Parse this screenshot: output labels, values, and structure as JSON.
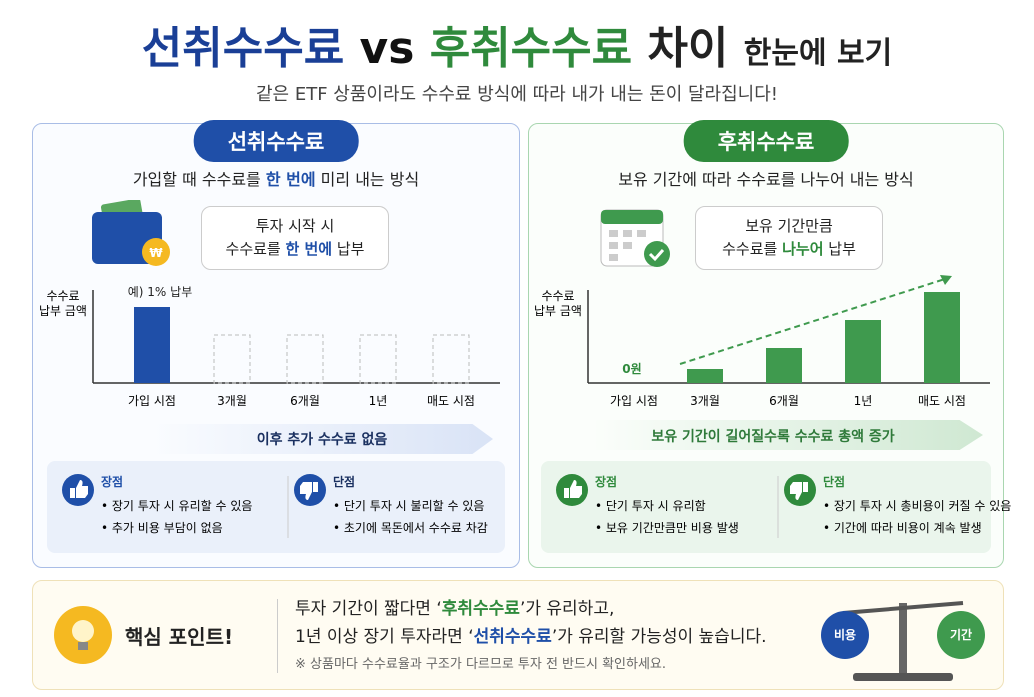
{
  "header": {
    "title_a": "선취수수료",
    "title_vs": "vs",
    "title_b": "후취수수료",
    "title_c": "차이",
    "title_d": "한눈에 보기",
    "subtitle": "같은 ETF 상품이라도 수수료 방식에 따라 내가 내는 돈이 달라집니다!"
  },
  "left": {
    "badge": "선취수수료",
    "desc": [
      "가입할 때 수수료를 ",
      "한 번에",
      " 미리 내는 방식"
    ],
    "bubble": [
      "투자 시작 시",
      "수수료를 ",
      "한 번에",
      " 납부"
    ],
    "currency_symbol": "₩",
    "chart": {
      "y_label": [
        "수수료",
        "납부 금액"
      ],
      "annotation": "예) 1% 납부",
      "categories": [
        "가입 시점",
        "3개월",
        "6개월",
        "1년",
        "매도 시점"
      ],
      "values": [
        76,
        null,
        null,
        null,
        null
      ],
      "ylim": [
        0,
        100
      ],
      "color": "#1f4fa8"
    },
    "arrow_text": "이후 추가 수수료 없음",
    "pros": {
      "title": "장점",
      "items": [
        "장기 투자 시 유리할 수 있음",
        "추가 비용 부담이 없음"
      ]
    },
    "cons": {
      "title": "단점",
      "items": [
        "단기 투자 시 불리할 수 있음",
        "초기에 목돈에서 수수료 차감"
      ]
    }
  },
  "right": {
    "badge": "후취수수료",
    "desc": [
      "보유 기간에 따라 수수료를 나누어 내는 방식"
    ],
    "bubble": [
      "보유 기간만큼",
      "수수료를 ",
      "나누어",
      " 납부"
    ],
    "chart": {
      "y_label": [
        "수수료",
        "납부 금액"
      ],
      "annotation": "0원",
      "categories": [
        "가입 시점",
        "3개월",
        "6개월",
        "1년",
        "매도 시점"
      ],
      "values": [
        0,
        14,
        35,
        63,
        91
      ],
      "ylim": [
        0,
        100
      ],
      "color": "#3f9a4e"
    },
    "arrow_text": "보유 기간이 길어질수록 수수료 총액 증가",
    "pros": {
      "title": "장점",
      "items": [
        "단기 투자 시 유리함",
        "보유 기간만큼만 비용 발생"
      ]
    },
    "cons": {
      "title": "단점",
      "items": [
        "장기 투자 시 총비용이 커질 수 있음",
        "기간에 따라 비용이 계속 발생"
      ]
    }
  },
  "key_point": {
    "title": "핵심 포인트!",
    "line1": [
      "투자 기간이 짧다면 ‘",
      "후취수수료",
      "’가 유리하고,"
    ],
    "line2": [
      "1년 이상 장기 투자라면 ‘",
      "선취수수료",
      "’가 유리할 가능성이 높습니다."
    ],
    "note": "※ 상품마다 수수료율과 구조가 다르므로 투자 전 반드시 확인하세요.",
    "scale_left": "비용",
    "scale_right": "기간"
  }
}
